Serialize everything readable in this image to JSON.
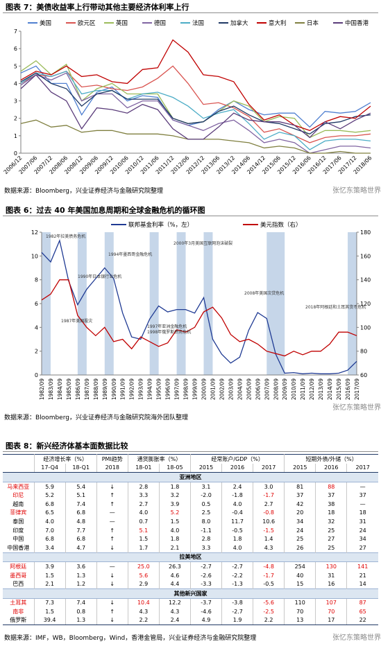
{
  "chart_data": [
    {
      "type": "line",
      "title": "图表 7：美债收益率上行带动其他主要经济体利率上行",
      "categories": [
        "2006/12",
        "2007/06",
        "2007/12",
        "2008/06",
        "2008/12",
        "2009/06",
        "2009/12",
        "2010/06",
        "2010/12",
        "2011/06",
        "2011/12",
        "2012/06",
        "2012/12",
        "2013/06",
        "2013/12",
        "2014/06",
        "2014/12",
        "2015/06",
        "2015/12",
        "2016/06",
        "2016/12",
        "2017/06",
        "2017/12",
        "2018/06"
      ],
      "series": [
        {
          "name": "美国",
          "color": "#4f7fd0",
          "values": [
            4.6,
            5.0,
            4.0,
            4.0,
            2.2,
            3.5,
            3.8,
            3.0,
            3.3,
            3.2,
            1.9,
            1.6,
            1.8,
            2.5,
            3.0,
            2.5,
            2.2,
            2.3,
            2.3,
            1.5,
            2.4,
            2.3,
            2.4,
            2.9
          ]
        },
        {
          "name": "欧元区",
          "color": "#d9534f",
          "values": [
            4.0,
            4.5,
            4.4,
            4.7,
            3.8,
            3.9,
            3.7,
            3.6,
            3.8,
            4.3,
            5.0,
            4.0,
            2.8,
            2.9,
            2.6,
            2.1,
            1.2,
            1.4,
            1.0,
            0.6,
            0.9,
            1.0,
            1.0,
            1.1
          ]
        },
        {
          "name": "英国",
          "color": "#9bbb59",
          "values": [
            4.7,
            5.3,
            4.5,
            5.1,
            3.0,
            3.7,
            4.0,
            3.4,
            3.4,
            3.4,
            2.0,
            1.7,
            1.8,
            2.4,
            3.0,
            2.7,
            1.8,
            2.1,
            2.0,
            0.9,
            1.3,
            1.3,
            1.2,
            1.3
          ]
        },
        {
          "name": "德国",
          "color": "#8064a2",
          "values": [
            3.9,
            4.5,
            4.2,
            4.6,
            3.0,
            3.4,
            3.4,
            2.6,
            3.0,
            3.0,
            1.9,
            1.6,
            1.3,
            1.7,
            1.9,
            1.3,
            0.6,
            0.8,
            0.6,
            0.0,
            0.2,
            0.4,
            0.4,
            0.3
          ]
        },
        {
          "name": "法国",
          "color": "#4bacc6",
          "values": [
            4.0,
            4.6,
            4.4,
            4.7,
            3.4,
            3.6,
            3.6,
            3.1,
            3.4,
            3.5,
            3.2,
            2.7,
            2.0,
            2.3,
            2.5,
            1.7,
            0.8,
            1.2,
            1.0,
            0.2,
            0.7,
            0.8,
            0.8,
            0.7
          ]
        },
        {
          "name": "加拿大",
          "color": "#1f3864",
          "values": [
            4.1,
            4.6,
            4.0,
            3.7,
            2.7,
            3.4,
            3.6,
            3.1,
            3.1,
            3.1,
            2.0,
            1.7,
            1.8,
            2.4,
            2.7,
            2.2,
            1.8,
            1.7,
            1.4,
            1.1,
            1.7,
            1.8,
            2.1,
            2.2
          ]
        },
        {
          "name": "意大利",
          "color": "#c00000",
          "values": [
            4.2,
            4.7,
            4.5,
            5.0,
            4.4,
            4.5,
            4.1,
            4.0,
            4.8,
            4.9,
            6.5,
            5.8,
            4.5,
            4.4,
            4.1,
            2.8,
            1.9,
            2.2,
            1.6,
            1.3,
            1.8,
            2.1,
            2.0,
            2.7
          ]
        },
        {
          "name": "日本",
          "color": "#7f7f3f",
          "values": [
            1.7,
            1.9,
            1.5,
            1.6,
            1.2,
            1.3,
            1.3,
            1.1,
            1.1,
            1.1,
            1.0,
            0.8,
            0.8,
            0.8,
            0.7,
            0.6,
            0.3,
            0.4,
            0.3,
            0.0,
            0.0,
            0.1,
            0.0,
            0.0
          ]
        },
        {
          "name": "中国香港",
          "color": "#5a3b7a",
          "values": [
            3.7,
            4.5,
            3.5,
            3.0,
            1.4,
            2.6,
            2.5,
            2.3,
            2.8,
            2.5,
            1.4,
            0.8,
            0.8,
            1.5,
            2.3,
            1.9,
            1.8,
            1.8,
            1.6,
            0.9,
            1.8,
            1.4,
            1.9,
            2.3
          ]
        }
      ],
      "ylim": [
        0,
        7
      ],
      "yticks": [
        0,
        1,
        2,
        3,
        4,
        5,
        6,
        7
      ],
      "legend": "top"
    },
    {
      "type": "line",
      "title": "图表 6：过去 40 年美国加息周期和全球金融危机的循环图",
      "categories": [
        "1982/09",
        "1983/09",
        "1984/09",
        "1985/09",
        "1986/09",
        "1987/09",
        "1988/09",
        "1989/09",
        "1990/09",
        "1991/09",
        "1992/09",
        "1993/09",
        "1994/09",
        "1995/09",
        "1996/09",
        "1997/09",
        "1998/09",
        "1999/09",
        "2000/09",
        "2001/09",
        "2002/09",
        "2003/09",
        "2004/09",
        "2005/09",
        "2006/09",
        "2007/09",
        "2008/09",
        "2009/09",
        "2010/09",
        "2011/09",
        "2012/09",
        "2013/09",
        "2014/09",
        "2015/09",
        "2016/09",
        "2017/09"
      ],
      "series": [
        {
          "name": "联邦基金利率（%，左）",
          "color": "#1f3a93",
          "axis": "y",
          "values": [
            10.3,
            9.5,
            11.3,
            7.9,
            5.9,
            7.2,
            8.1,
            9.0,
            8.1,
            5.2,
            3.2,
            3.0,
            4.7,
            5.8,
            5.3,
            5.5,
            5.5,
            5.2,
            6.5,
            3.0,
            1.75,
            1.0,
            1.5,
            3.75,
            5.25,
            4.75,
            1.75,
            0.15,
            0.2,
            0.1,
            0.15,
            0.1,
            0.1,
            0.15,
            0.4,
            1.15
          ]
        },
        {
          "name": "美元指数（右）",
          "color": "#c00000",
          "axis": "y2",
          "values": [
            123,
            128,
            140,
            140,
            110,
            100,
            93,
            100,
            88,
            90,
            82,
            92,
            88,
            84,
            87,
            98,
            96,
            100,
            113,
            117,
            108,
            94,
            88,
            90,
            86,
            80,
            78,
            76,
            80,
            77,
            80,
            80,
            86,
            96,
            96,
            93
          ]
        }
      ],
      "ylim": [
        0,
        12
      ],
      "yticks": [
        0,
        2,
        4,
        6,
        8,
        10,
        12
      ],
      "y2lim": [
        60,
        180
      ],
      "y2ticks": [
        60,
        80,
        100,
        120,
        140,
        160,
        180
      ],
      "legend": "top",
      "shaded": [
        {
          "from": "1982/09",
          "to": "1983/09"
        },
        {
          "from": "1986/09",
          "to": "1987/09"
        },
        {
          "from": "1989/09",
          "to": "1990/09"
        },
        {
          "from": "1994/09",
          "to": "1995/09"
        },
        {
          "from": "1997/09",
          "to": "1998/09"
        },
        {
          "from": "2000/09",
          "to": "2001/09"
        },
        {
          "from": "2007/09",
          "to": "2009/09"
        },
        {
          "from": "2016/09",
          "to": "2017/09"
        }
      ],
      "annotations": [
        "1982年拉美债务危机",
        "1987年美国股灾",
        "1990年日本银行业危机",
        "1994年墨西哥金融危机",
        "1997年亚洲金融危机",
        "1998年俄罗斯债务危机",
        "2000年3月美国互联网泡沫破裂",
        "2008年美国次贷危机",
        "2018年阿根廷和土耳其货币危机"
      ]
    }
  ],
  "sources": [
    "数据来源：Bloomberg，兴业证券经济与金融研究院整理",
    "数据来源：Bloomberg，兴业证券经济与金融研究院海外团队整理",
    "数据来源：IMF，WB，Bloomberg，Wind，香港金管局，兴业证券经济与金融研究院整理"
  ],
  "watermark": "张忆东策略世界",
  "table": {
    "title": "图表 8：新兴经济体基本面数据比较",
    "groups": [
      {
        "text": "经济增长率（%）",
        "columns": [
          "17-Q4",
          "18-Q1"
        ]
      },
      {
        "text": "PMI趋势",
        "columns": [
          "2018"
        ]
      },
      {
        "text": "通货膨胀率（%）",
        "columns": [
          "18-01",
          "18-05"
        ]
      },
      {
        "text": "经常账户/GDP（%）",
        "columns": [
          "2015",
          "2016",
          "2017"
        ]
      },
      {
        "text": "短期外债/外储（%）",
        "columns": [
          "2015",
          "2016",
          "2017"
        ]
      }
    ],
    "sections": [
      {
        "title": "亚洲地区",
        "rows": [
          {
            "cells": [
              "马来西亚",
              "5.9",
              "5.4",
              "↓",
              "2.8",
              "1.8",
              "3.1",
              "2.4",
              "3.0",
              "81",
              "88",
              "—"
            ],
            "red": [
              0,
              10
            ]
          },
          {
            "cells": [
              "印尼",
              "5.2",
              "5.1",
              "↑",
              "3.3",
              "3.2",
              "-2.0",
              "-1.8",
              "-1.7",
              "37",
              "37",
              "37"
            ],
            "red": [
              0,
              8
            ]
          },
          {
            "cells": [
              "越南",
              "6.8",
              "7.4",
              "↑",
              "2.7",
              "3.9",
              "0.5",
              "4.0",
              "2.7",
              "42",
              "38",
              "—"
            ],
            "red": []
          },
          {
            "cells": [
              "菲律宾",
              "6.5",
              "6.8",
              "—",
              "4.0",
              "5.2",
              "2.5",
              "-0.4",
              "-0.8",
              "20",
              "18",
              "18"
            ],
            "red": [
              0,
              5,
              8
            ]
          },
          {
            "cells": [
              "泰国",
              "4.0",
              "4.8",
              "—",
              "0.7",
              "1.5",
              "8.0",
              "11.7",
              "10.6",
              "34",
              "32",
              "31"
            ],
            "red": []
          },
          {
            "cells": [
              "印度",
              "7.0",
              "7.7",
              "↑",
              "5.1",
              "4.0",
              "-1.1",
              "-0.5",
              "-1.5",
              "24",
              "25",
              "24"
            ],
            "red": [
              4,
              8
            ]
          },
          {
            "cells": [
              "中国",
              "6.8",
              "6.8",
              "↑",
              "1.5",
              "1.8",
              "2.8",
              "1.8",
              "1.4",
              "25",
              "27",
              "34"
            ],
            "red": []
          },
          {
            "cells": [
              "中国香港",
              "3.4",
              "4.7",
              "↓",
              "1.7",
              "2.1",
              "3.3",
              "4.0",
              "4.3",
              "26",
              "25",
              "27"
            ],
            "red": []
          }
        ]
      },
      {
        "title": "拉美地区",
        "rows": [
          {
            "cells": [
              "阿根廷",
              "3.9",
              "3.6",
              "—",
              "25.0",
              "26.3",
              "-2.7",
              "-2.7",
              "-4.8",
              "254",
              "130",
              "141"
            ],
            "red": [
              0,
              4,
              8,
              10,
              11
            ]
          },
          {
            "cells": [
              "墨西哥",
              "1.5",
              "1.3",
              "↓",
              "5.6",
              "4.6",
              "-2.6",
              "-2.2",
              "-1.7",
              "40",
              "31",
              "21"
            ],
            "red": [
              0,
              4,
              8
            ]
          },
          {
            "cells": [
              "巴西",
              "2.1",
              "1.2",
              "↓",
              "2.9",
              "4.4",
              "-3.3",
              "-1.3",
              "-0.5",
              "15",
              "16",
              "14"
            ],
            "red": []
          }
        ]
      },
      {
        "title": "其他新兴国家",
        "rows": [
          {
            "cells": [
              "土耳其",
              "7.3",
              "7.4",
              "↓",
              "10.4",
              "12.2",
              "-3.7",
              "-3.8",
              "-5.6",
              "110",
              "107",
              "87"
            ],
            "red": [
              0,
              4,
              8,
              10,
              11
            ]
          },
          {
            "cells": [
              "南非",
              "1.5",
              "0.8",
              "↑",
              "4.3",
              "4.3",
              "-4.6",
              "-2.7",
              "-2.5",
              "70",
              "70",
              "65"
            ],
            "red": [
              0,
              8,
              10,
              11
            ]
          },
          {
            "cells": [
              "俄罗斯",
              "39.4",
              "1.3",
              "↓",
              "2.2",
              "2.4",
              "4.9",
              "1.9",
              "2.2",
              "13",
              "17",
              "22"
            ],
            "red": []
          }
        ]
      }
    ]
  }
}
